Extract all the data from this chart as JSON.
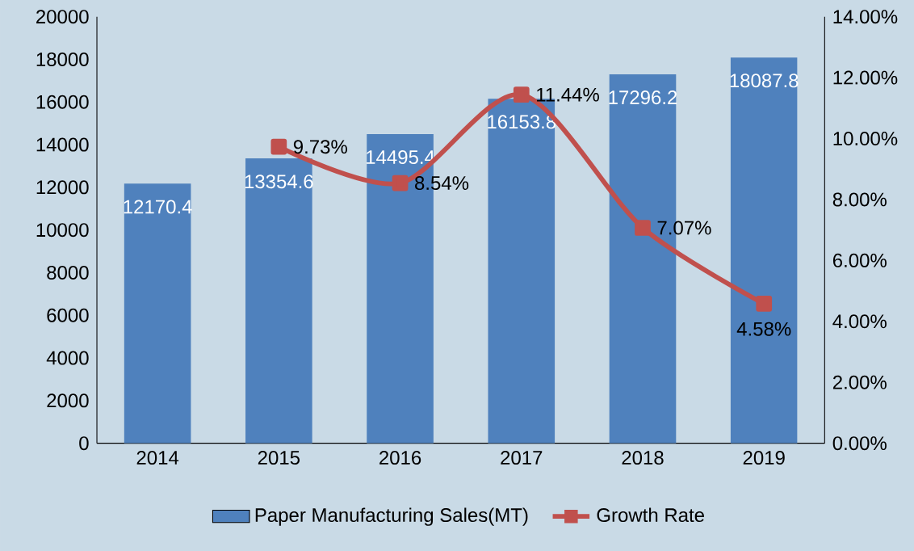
{
  "chart_data": {
    "type": "bar",
    "categories": [
      "2014",
      "2015",
      "2016",
      "2017",
      "2018",
      "2019"
    ],
    "series": [
      {
        "name": "Paper Manufacturing Sales(MT)",
        "type": "bar",
        "color": "#4f81bd",
        "values": [
          12170.4,
          13354.6,
          14495.4,
          16153.8,
          17296.2,
          18087.8
        ]
      },
      {
        "name": "Growth Rate",
        "type": "line",
        "axis": "y2",
        "color": "#c0504d",
        "marker": "square",
        "values": [
          null,
          9.73,
          8.54,
          11.44,
          7.07,
          4.58
        ],
        "value_labels": [
          null,
          "9.73%",
          "8.54%",
          "11.44%",
          "7.07%",
          "4.58%"
        ]
      }
    ],
    "data_labels": true,
    "ylim": [
      0,
      20000
    ],
    "yticks": [
      0,
      2000,
      4000,
      6000,
      8000,
      10000,
      12000,
      14000,
      16000,
      18000,
      20000
    ],
    "y2lim": [
      0,
      14
    ],
    "y2ticks": [
      {
        "value": 0,
        "label": "0.00%"
      },
      {
        "value": 2,
        "label": "2.00%"
      },
      {
        "value": 4,
        "label": "4.00%"
      },
      {
        "value": 6,
        "label": "6.00%"
      },
      {
        "value": 8,
        "label": "8.00%"
      },
      {
        "value": 10,
        "label": "10.00%"
      },
      {
        "value": 12,
        "label": "12.00%"
      },
      {
        "value": 14,
        "label": "14.00%"
      }
    ],
    "legend": "bottom"
  }
}
